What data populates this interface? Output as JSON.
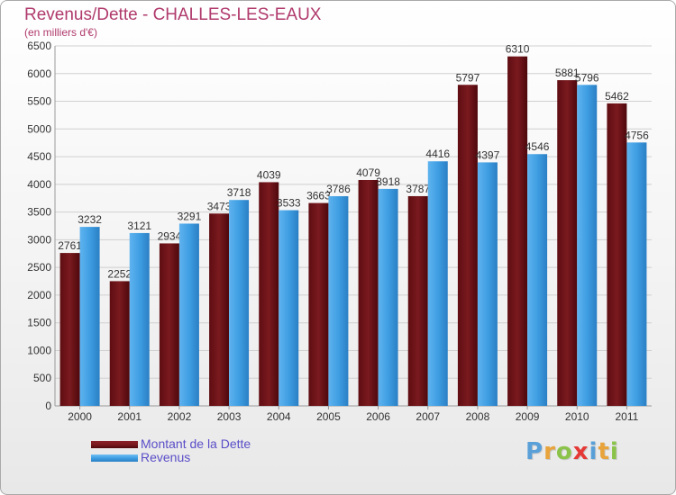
{
  "header": {
    "title": "Revenus/Dette - CHALLES-LES-EAUX",
    "subtitle": "(en milliers d'€)"
  },
  "colors": {
    "dette": "#7a1a1f",
    "revenus": "#3f9ee2",
    "grid": "#d0d0d0",
    "text": "#333333",
    "title": "#b03a6c"
  },
  "chart_data": {
    "type": "bar",
    "categories": [
      "2000",
      "2001",
      "2002",
      "2003",
      "2004",
      "2005",
      "2006",
      "2007",
      "2008",
      "2009",
      "2010",
      "2011"
    ],
    "series": [
      {
        "name": "Montant de la Dette",
        "values": [
          2761,
          2252,
          2934,
          3473,
          4039,
          3663,
          4079,
          3787,
          5797,
          6310,
          5881,
          5462
        ]
      },
      {
        "name": "Revenus",
        "values": [
          3232,
          3121,
          3291,
          3718,
          3533,
          3786,
          3918,
          4416,
          4397,
          4546,
          5796,
          4756
        ]
      }
    ],
    "ylim": [
      0,
      6500
    ],
    "yticks": [
      0,
      500,
      1000,
      1500,
      2000,
      2500,
      3000,
      3500,
      4000,
      4500,
      5000,
      5500,
      6000,
      6500
    ],
    "grid": true,
    "legend": "bottom-left"
  },
  "legend": {
    "items": [
      "Montant de la Dette",
      "Revenus"
    ]
  },
  "logo": {
    "letters": [
      "P",
      "r",
      "o",
      "x",
      "i",
      "t",
      "i"
    ],
    "colors": [
      "#5aa0d8",
      "#e8a33b",
      "#8bc34a",
      "#e53935",
      "#5aa0d8",
      "#e8a33b",
      "#8bc34a"
    ]
  }
}
